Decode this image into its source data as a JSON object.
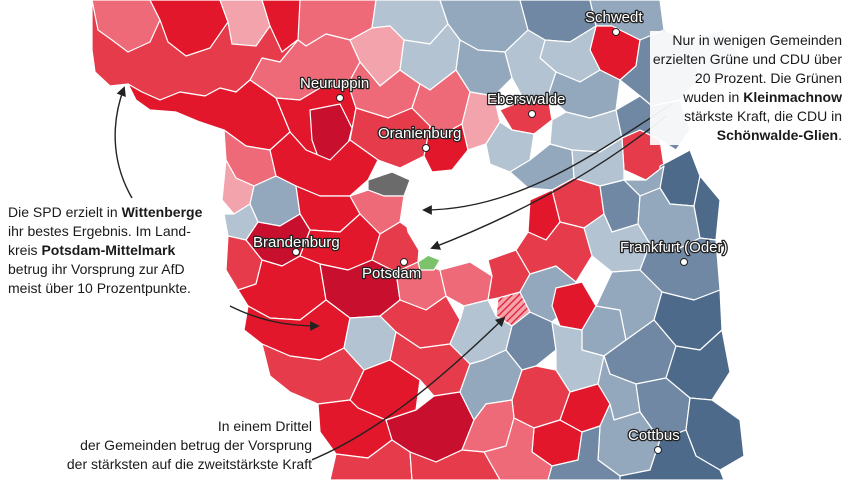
{
  "colors": {
    "spd_strong": "#e3172b",
    "spd_dark": "#c8102e",
    "spd_medium": "#e63b4b",
    "spd_light": "#ee6a78",
    "spd_pale": "#f3a3ac",
    "afd_pale": "#b4c3d2",
    "afd_light": "#93a7bd",
    "afd_medium": "#7088a3",
    "afd_dark": "#4e6a8a",
    "gruene": "#7cc26a",
    "cdu": "#6b6b6b",
    "background": "#ffffff",
    "border": "#ffffff"
  },
  "cities": [
    {
      "name": "Schwedt",
      "icon": "city-dot-icon"
    },
    {
      "name": "Neuruppin",
      "icon": "city-dot-icon"
    },
    {
      "name": "Eberswalde",
      "icon": "city-dot-icon"
    },
    {
      "name": "Oranienburg",
      "icon": "city-dot-icon"
    },
    {
      "name": "Brandenburg",
      "icon": "city-dot-icon"
    },
    {
      "name": "Potsdam",
      "icon": "city-dot-icon"
    },
    {
      "name": "Frankfurt (Oder)",
      "icon": "city-dot-icon"
    },
    {
      "name": "Cottbus",
      "icon": "city-dot-icon"
    }
  ],
  "annotations": {
    "spd": {
      "t1": "Die SPD erzielt in ",
      "b1": "Wittenberge",
      "t2": " ihr bestes Ergebnis. Im Land­kreis ",
      "b2": "Potsdam-Mittelmark",
      "t3": " betrug ihr Vorsprung zur AfD meist über 10 Prozentpunkte."
    },
    "gruene": {
      "t1": "Nur in wenigen Gemeinden erzielten Grüne und CDU über 20 Prozent. Die Grünen wuden in ",
      "b1": "Kleinmachnow",
      "t2": " stärkste Kraft, die CDU in ",
      "b2": "Schönwalde-Glien",
      "t3": "."
    },
    "drittel": {
      "l1": "In einem Drittel",
      "l2": "der Gemeinden betrug der Vorsprung",
      "l3": "der stärksten auf die zweitstärkste Kraft"
    }
  }
}
